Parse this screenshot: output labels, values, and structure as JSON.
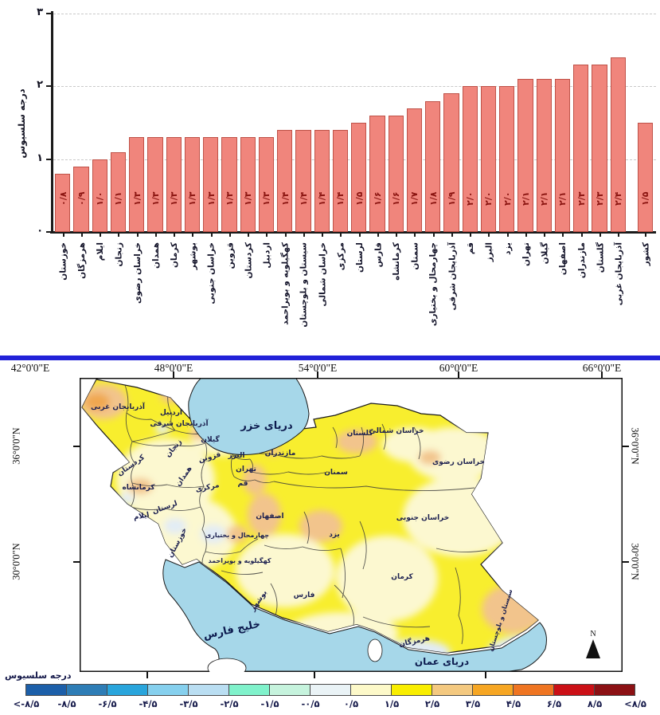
{
  "chart_data": [
    {
      "type": "bar",
      "title": "",
      "ylabel": "درجه سلسیوس",
      "categories": [
        "خوزستان",
        "هرمزگان",
        "ایلام",
        "زنجان",
        "خراسان رضوی",
        "همدان",
        "کرمان",
        "بوشهر",
        "خراسان جنوبی",
        "قزوین",
        "کردستان",
        "اردبیل",
        "کهگیلویه و بویراحمد",
        "سیستان و بلوچستان",
        "خراسان شمالی",
        "مرکزی",
        "لرستان",
        "فارس",
        "کرمانشاه",
        "سمنان",
        "چهارمحال و بختیاری",
        "آذربایجان شرقی",
        "قم",
        "البرز",
        "یزد",
        "تهران",
        "گیلان",
        "اصفهان",
        "مازندران",
        "گلستان",
        "آذربایجان غربی",
        "کشور"
      ],
      "values": [
        0.8,
        0.9,
        1.0,
        1.1,
        1.3,
        1.3,
        1.3,
        1.3,
        1.3,
        1.3,
        1.3,
        1.3,
        1.4,
        1.4,
        1.4,
        1.4,
        1.5,
        1.6,
        1.6,
        1.7,
        1.8,
        1.9,
        2.0,
        2.0,
        2.0,
        2.1,
        2.1,
        2.1,
        2.3,
        2.3,
        2.4,
        1.5
      ],
      "value_labels": [
        "۰/۸",
        "۰/۹",
        "۱/۰",
        "۱/۱",
        "۱/۳",
        "۱/۳",
        "۱/۳",
        "۱/۳",
        "۱/۳",
        "۱/۳",
        "۱/۳",
        "۱/۳",
        "۱/۴",
        "۱/۴",
        "۱/۴",
        "۱/۴",
        "۱/۵",
        "۱/۶",
        "۱/۶",
        "۱/۷",
        "۱/۸",
        "۱/۹",
        "۲/۰",
        "۲/۰",
        "۲/۰",
        "۲/۱",
        "۲/۱",
        "۲/۱",
        "۲/۳",
        "۲/۳",
        "۲/۴",
        "۱/۵"
      ],
      "ylim": [
        0,
        3
      ],
      "y_tick_labels": [
        "۰",
        "۱",
        "۲",
        "۳"
      ],
      "grid": "dashed horizontal",
      "bar_color": "#f0857c"
    },
    {
      "type": "heatmap",
      "title": "",
      "legend_title": "درجه سلسیوس",
      "lon_tick_labels": [
        "42°0'0\"E",
        "48°0'0\"E",
        "54°0'0\"E",
        "60°0'0\"E",
        "66°0'0\"E"
      ],
      "lat_tick_labels": [
        "36°0'0\"N",
        "30°0'0\"N"
      ],
      "north_arrow_label": "N",
      "seas": [
        {
          "name": "دریای خزر",
          "x": 235,
          "y": 64,
          "size": 13,
          "r": 0
        },
        {
          "name": "خلیج فارس",
          "x": 192,
          "y": 320,
          "size": 13,
          "r": -12
        },
        {
          "name": "دریای عمان",
          "x": 455,
          "y": 360,
          "size": 12,
          "r": 0
        }
      ],
      "provinces": [
        {
          "name": "آذربایجان غربی",
          "x": 48,
          "y": 39,
          "r": 0
        },
        {
          "name": "آذربایجان شرقی",
          "x": 125,
          "y": 60,
          "r": 0
        },
        {
          "name": "اردبیل",
          "x": 115,
          "y": 46,
          "r": 0
        },
        {
          "name": "گیلان",
          "x": 164,
          "y": 80,
          "r": 0
        },
        {
          "name": "زنجان",
          "x": 120,
          "y": 90,
          "r": -50
        },
        {
          "name": "قزوین",
          "x": 164,
          "y": 102,
          "r": -15
        },
        {
          "name": "البرز",
          "x": 197,
          "y": 100,
          "r": 0
        },
        {
          "name": "تهران",
          "x": 209,
          "y": 117,
          "r": 0
        },
        {
          "name": "قم",
          "x": 205,
          "y": 135,
          "r": 0
        },
        {
          "name": "مرکزی",
          "x": 161,
          "y": 140,
          "r": -12
        },
        {
          "name": "مازندران",
          "x": 252,
          "y": 97,
          "r": 0
        },
        {
          "name": "گلستان",
          "x": 352,
          "y": 72,
          "r": 0
        },
        {
          "name": "خراسان شمالی",
          "x": 398,
          "y": 69,
          "r": 0
        },
        {
          "name": "خراسان رضوی",
          "x": 476,
          "y": 108,
          "r": 0
        },
        {
          "name": "سمنان",
          "x": 322,
          "y": 121,
          "r": 0
        },
        {
          "name": "خراسان جنوبی",
          "x": 431,
          "y": 178,
          "r": 0
        },
        {
          "name": "کردستان",
          "x": 66,
          "y": 112,
          "r": -35
        },
        {
          "name": "همدان",
          "x": 133,
          "y": 125,
          "r": -55
        },
        {
          "name": "کرمانشاه",
          "x": 74,
          "y": 140,
          "r": 0
        },
        {
          "name": "لرستان",
          "x": 108,
          "y": 165,
          "r": -20
        },
        {
          "name": "ایلام",
          "x": 78,
          "y": 176,
          "r": -10
        },
        {
          "name": "خوزستان",
          "x": 125,
          "y": 208,
          "r": -62
        },
        {
          "name": "اصفهان",
          "x": 239,
          "y": 176,
          "r": 0
        },
        {
          "name": "چهارمحال و بختیاری",
          "x": 198,
          "y": 200,
          "r": 0
        },
        {
          "name": "کهگیلویه و بویراحمد",
          "x": 201,
          "y": 232,
          "r": 0
        },
        {
          "name": "بوشهر",
          "x": 227,
          "y": 281,
          "r": -55
        },
        {
          "name": "فارس",
          "x": 282,
          "y": 275,
          "r": 0
        },
        {
          "name": "یزد",
          "x": 320,
          "y": 199,
          "r": 0
        },
        {
          "name": "کرمان",
          "x": 405,
          "y": 252,
          "r": 0
        },
        {
          "name": "هرمزگان",
          "x": 421,
          "y": 333,
          "r": -12
        },
        {
          "name": "سیستان و بلوچستان",
          "x": 531,
          "y": 305,
          "r": -72
        }
      ],
      "legend_classes": {
        "colors": [
          "#1c5fa9",
          "#2e7db6",
          "#29a5dc",
          "#86d0ee",
          "#badef2",
          "#80f2cb",
          "#c6f3dd",
          "#eaf3f6",
          "#fdf9c9",
          "#f9ee00",
          "#f4c980",
          "#f6a623",
          "#ef7522",
          "#cb1016",
          "#8c1114"
        ],
        "labels": [
          "<-۸/۵",
          "-۸/۵",
          "-۶/۵",
          "-۴/۵",
          "-۳/۵",
          "-۲/۵",
          "-۱/۵",
          "-۰/۵",
          "۰/۵",
          "۱/۵",
          "۲/۵",
          "۳/۵",
          "۴/۵",
          "۶/۵",
          "۸/۵",
          "<۸/۵"
        ]
      }
    }
  ],
  "map_colors": {
    "land_yellow": "#f8ee2e",
    "pale_yellow": "#fcf8d0",
    "sandy": "#f2c48c",
    "orange": "#f0a74f",
    "sea": "#a6d7e9",
    "pale_blue": "#e2ecf5"
  }
}
